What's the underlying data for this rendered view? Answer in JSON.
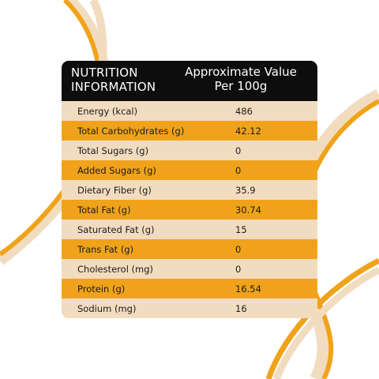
{
  "header": {
    "left_line1": "NUTRITION",
    "left_line2": "INFORMATION",
    "right_line1": "Approximate Value",
    "right_line2": "Per 100g"
  },
  "rows": [
    {
      "label": "Energy (kcal)",
      "value": "486"
    },
    {
      "label": "Total Carbohydrates (g)",
      "value": "42.12"
    },
    {
      "label": "Total Sugars (g)",
      "value": "0"
    },
    {
      "label": "Added Sugars (g)",
      "value": "0"
    },
    {
      "label": "Dietary Fiber (g)",
      "value": "35.9"
    },
    {
      "label": "Total Fat (g)",
      "value": "30.74"
    },
    {
      "label": "Saturated Fat (g)",
      "value": "15"
    },
    {
      "label": "Trans Fat (g)",
      "value": "0"
    },
    {
      "label": "Cholesterol (mg)",
      "value": "0"
    },
    {
      "label": "Protein (g)",
      "value": "16.54"
    },
    {
      "label": "Sodium (mg)",
      "value": "16"
    }
  ],
  "colors": {
    "header_bg": "#0d0d0d",
    "row_light": "#f2dcc0",
    "row_accent": "#f0a31a",
    "curve_orange": "#f0a31a",
    "curve_cream": "#f2dcc0"
  }
}
